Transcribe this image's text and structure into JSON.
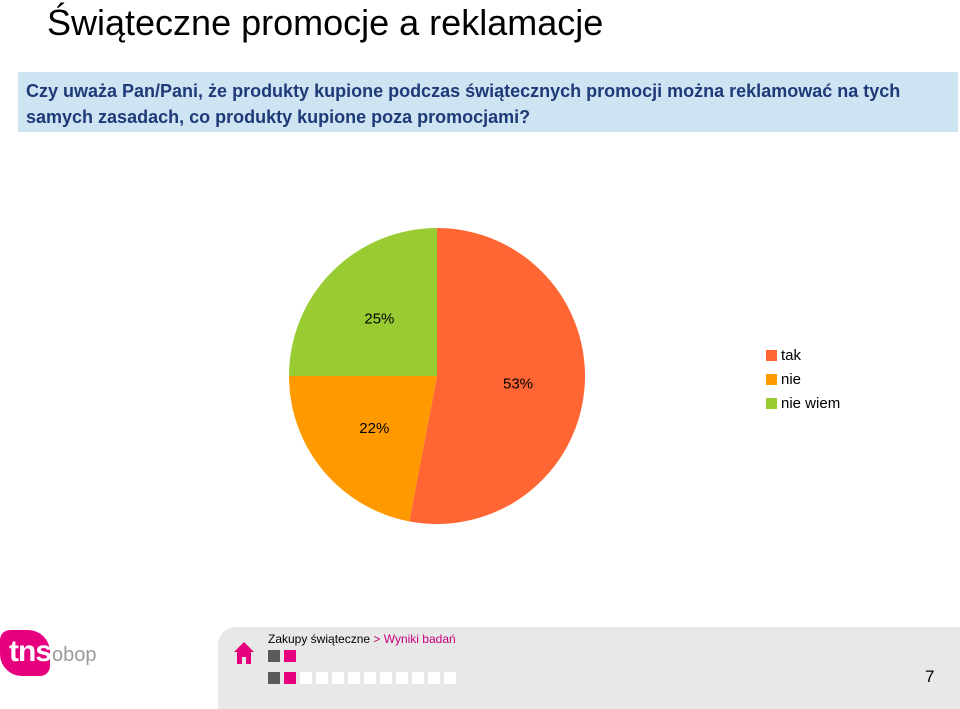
{
  "title": "Świąteczne promocje a reklamacje",
  "question": "Czy uważa Pan/Pani, że produkty kupione podczas świątecznych promocji można reklamować na tych samych zasadach, co produkty kupione poza promocjami?",
  "chart_data": {
    "type": "pie",
    "slices": [
      {
        "name": "tak",
        "value": 53,
        "label": "53%",
        "color": "#ff6633"
      },
      {
        "name": "nie",
        "value": 22,
        "label": "22%",
        "color": "#ff9900"
      },
      {
        "name": "nie wiem",
        "value": 25,
        "label": "25%",
        "color": "#99cc33"
      }
    ],
    "legend": [
      "tak",
      "nie",
      "nie wiem"
    ],
    "legend_position": "right"
  },
  "footer": {
    "breadcrumb_section": "Zakupy świąteczne",
    "breadcrumb_separator": ">",
    "breadcrumb_current": "Wyniki badań",
    "page_number": "7",
    "home_icon": "home-icon"
  },
  "logo": {
    "tns": "tns",
    "obop": "obop"
  },
  "colors": {
    "accent": "#e6007e",
    "question_bg": "#cfe4f2",
    "question_text": "#1f3a78"
  }
}
